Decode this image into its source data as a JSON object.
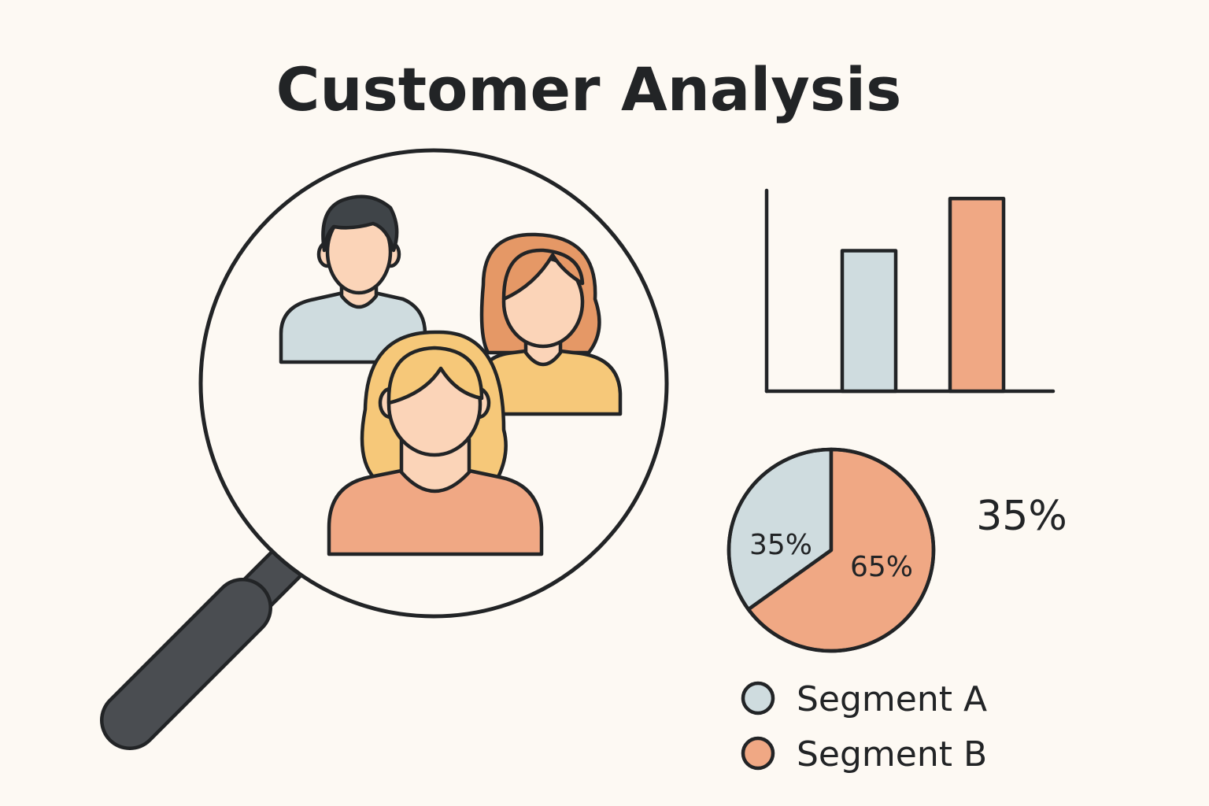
{
  "title": "Customer Analysis",
  "colors": {
    "background": "#fdf9f3",
    "ink": "#222426",
    "segment_a": "#cfdcdf",
    "segment_b": "#f0a884",
    "skin": "#fbd4b8",
    "hair_dark": "#3f4448",
    "hair_auburn": "#e59866",
    "hair_blonde": "#f6c879",
    "shirt_yellow": "#f6c879",
    "handle": "#4a4d51"
  },
  "icons": [
    "magnifying-glass-icon",
    "man-avatar-icon",
    "auburn-woman-avatar-icon",
    "blonde-woman-avatar-icon"
  ],
  "side_label": "35%",
  "legend": [
    {
      "label": "Segment A",
      "color": "#cfdcdf"
    },
    {
      "label": "Segment B",
      "color": "#f0a884"
    }
  ],
  "chart_data": [
    {
      "type": "bar",
      "categories": [
        "",
        ""
      ],
      "values": [
        35,
        48
      ],
      "colors": [
        "#cfdcdf",
        "#f0a884"
      ],
      "ylim": [
        0,
        50
      ],
      "grid": false
    },
    {
      "type": "pie",
      "slices": [
        {
          "label": "35%",
          "value": 35,
          "color": "#cfdcdf",
          "legend": "Segment A"
        },
        {
          "label": "65%",
          "value": 65,
          "color": "#f0a884",
          "legend": "Segment B"
        }
      ]
    }
  ]
}
